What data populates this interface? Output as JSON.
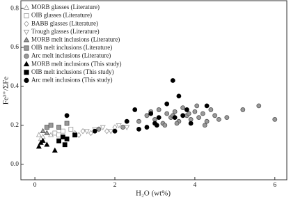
{
  "chart_data": {
    "type": "scatter",
    "xlabel": "H₂O (wt%)",
    "ylabel": "Fe³⁺/ΣFe",
    "xlim": [
      -0.35,
      6.3
    ],
    "ylim": [
      -0.08,
      0.84
    ],
    "xticks": [
      0,
      2,
      4,
      6
    ],
    "yticks": [
      {
        "value": 0,
        "label": "0.0"
      },
      0.2,
      0.4,
      0.6,
      0.8
    ],
    "legend": "upper left",
    "series": [
      {
        "name": "MORB glasses (Literature)",
        "marker": "triangle",
        "color": "#ffffff",
        "edgecolor": "#999999",
        "x": [
          0.1,
          0.2,
          0.3,
          0.15,
          0.4
        ],
        "values": [
          0.15,
          0.14,
          0.16,
          0.13,
          0.15
        ]
      },
      {
        "name": "OIB glasses (Literature)",
        "marker": "square",
        "color": "#ffffff",
        "edgecolor": "#999999",
        "x": [
          0.5,
          0.7,
          0.9,
          0.6
        ],
        "values": [
          0.16,
          0.17,
          0.18,
          0.15
        ]
      },
      {
        "name": "BABB glasses (Literature)",
        "marker": "diamond",
        "color": "#ffffff",
        "edgecolor": "#999999",
        "x": [
          1.0,
          1.2,
          1.4,
          1.6,
          1.8,
          2.0,
          1.1
        ],
        "values": [
          0.16,
          0.17,
          0.16,
          0.18,
          0.17,
          0.19,
          0.15
        ]
      },
      {
        "name": "Trough glasses (Literature)",
        "marker": "triangle-down",
        "color": "#ffffff",
        "edgecolor": "#999999",
        "x": [
          1.5,
          1.7,
          1.9,
          2.1,
          2.3,
          1.3
        ],
        "values": [
          0.18,
          0.19,
          0.17,
          0.2,
          0.19,
          0.17
        ]
      },
      {
        "name": "MORB melt inclusions (Literature)",
        "marker": "triangle",
        "color": "#999999",
        "edgecolor": "#555555",
        "x": [
          0.2,
          0.3
        ],
        "values": [
          0.17,
          0.16
        ]
      },
      {
        "name": "OIB melt inclusions (Literature)",
        "marker": "square",
        "color": "#999999",
        "edgecolor": "#555555",
        "x": [
          0.3,
          0.4,
          0.6,
          0.8
        ],
        "values": [
          0.19,
          0.2,
          0.19,
          0.21
        ]
      },
      {
        "name": "Arc melt inclusions (Literature)",
        "marker": "circle",
        "color": "#999999",
        "edgecolor": "#555555",
        "x": [
          1.6,
          2.2,
          2.6,
          2.8,
          3.0,
          3.1,
          3.2,
          3.3,
          3.4,
          3.5,
          3.6,
          3.7,
          3.8,
          3.9,
          4.0,
          4.1,
          4.2,
          4.3,
          4.4,
          4.5,
          4.6,
          4.8,
          5.2,
          5.6,
          6.0,
          3.25,
          3.55,
          3.85,
          4.05,
          4.25,
          2.9,
          3.45
        ],
        "values": [
          0.18,
          0.19,
          0.22,
          0.25,
          0.23,
          0.28,
          0.21,
          0.26,
          0.24,
          0.27,
          0.22,
          0.29,
          0.25,
          0.23,
          0.27,
          0.24,
          0.26,
          0.22,
          0.28,
          0.25,
          0.23,
          0.24,
          0.28,
          0.3,
          0.23,
          0.2,
          0.21,
          0.26,
          0.3,
          0.2,
          0.27,
          0.25
        ]
      },
      {
        "name": "MORB melt inclusions (This study)",
        "marker": "triangle",
        "color": "#000000",
        "edgecolor": "#000000",
        "x": [
          0.1,
          0.15,
          0.3,
          0.2,
          0.5
        ],
        "values": [
          0.09,
          0.11,
          0.1,
          0.12,
          0.07
        ]
      },
      {
        "name": "OIB melt inclusions (This study)",
        "marker": "square",
        "color": "#000000",
        "edgecolor": "#000000",
        "x": [
          0.6,
          0.8,
          1.0,
          0.7,
          0.75
        ],
        "values": [
          0.12,
          0.13,
          0.15,
          0.14,
          0.1
        ]
      },
      {
        "name": "Arc melt inclusions (This study)",
        "marker": "circle",
        "color": "#000000",
        "edgecolor": "#000000",
        "x": [
          0.8,
          1.5,
          2.0,
          2.3,
          2.5,
          2.8,
          2.9,
          3.0,
          3.1,
          3.3,
          3.5,
          3.6,
          3.7,
          3.8,
          3.9,
          3.05,
          4.3,
          2.6,
          3.45
        ],
        "values": [
          0.25,
          0.17,
          0.17,
          0.22,
          0.28,
          0.19,
          0.26,
          0.21,
          0.24,
          0.31,
          0.24,
          0.35,
          0.25,
          0.28,
          0.21,
          0.2,
          0.3,
          0.18,
          0.43
        ]
      }
    ]
  }
}
